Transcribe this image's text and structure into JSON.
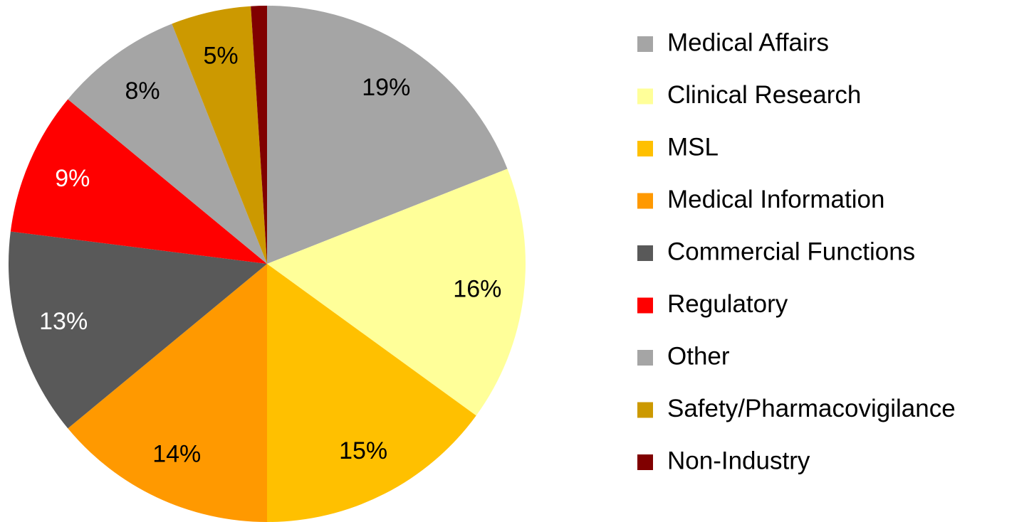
{
  "chart_data": {
    "type": "pie",
    "categories": [
      "Medical Affairs",
      "Clinical Research",
      "MSL",
      "Medical Information",
      "Commercial Functions",
      "Regulatory",
      "Other",
      "Safety/Pharmacovigilance",
      "Non-Industry"
    ],
    "values": [
      19,
      16,
      15,
      14,
      13,
      9,
      8,
      5,
      1
    ],
    "value_labels": [
      "19%",
      "16%",
      "15%",
      "14%",
      "13%",
      "9%",
      "8%",
      "5%",
      null
    ],
    "colors": [
      "#a5a5a5",
      "#ffff99",
      "#ffc000",
      "#ff9900",
      "#595959",
      "#ff0000",
      "#a5a5a5",
      "#cc9900",
      "#800000"
    ],
    "legend": "right"
  }
}
